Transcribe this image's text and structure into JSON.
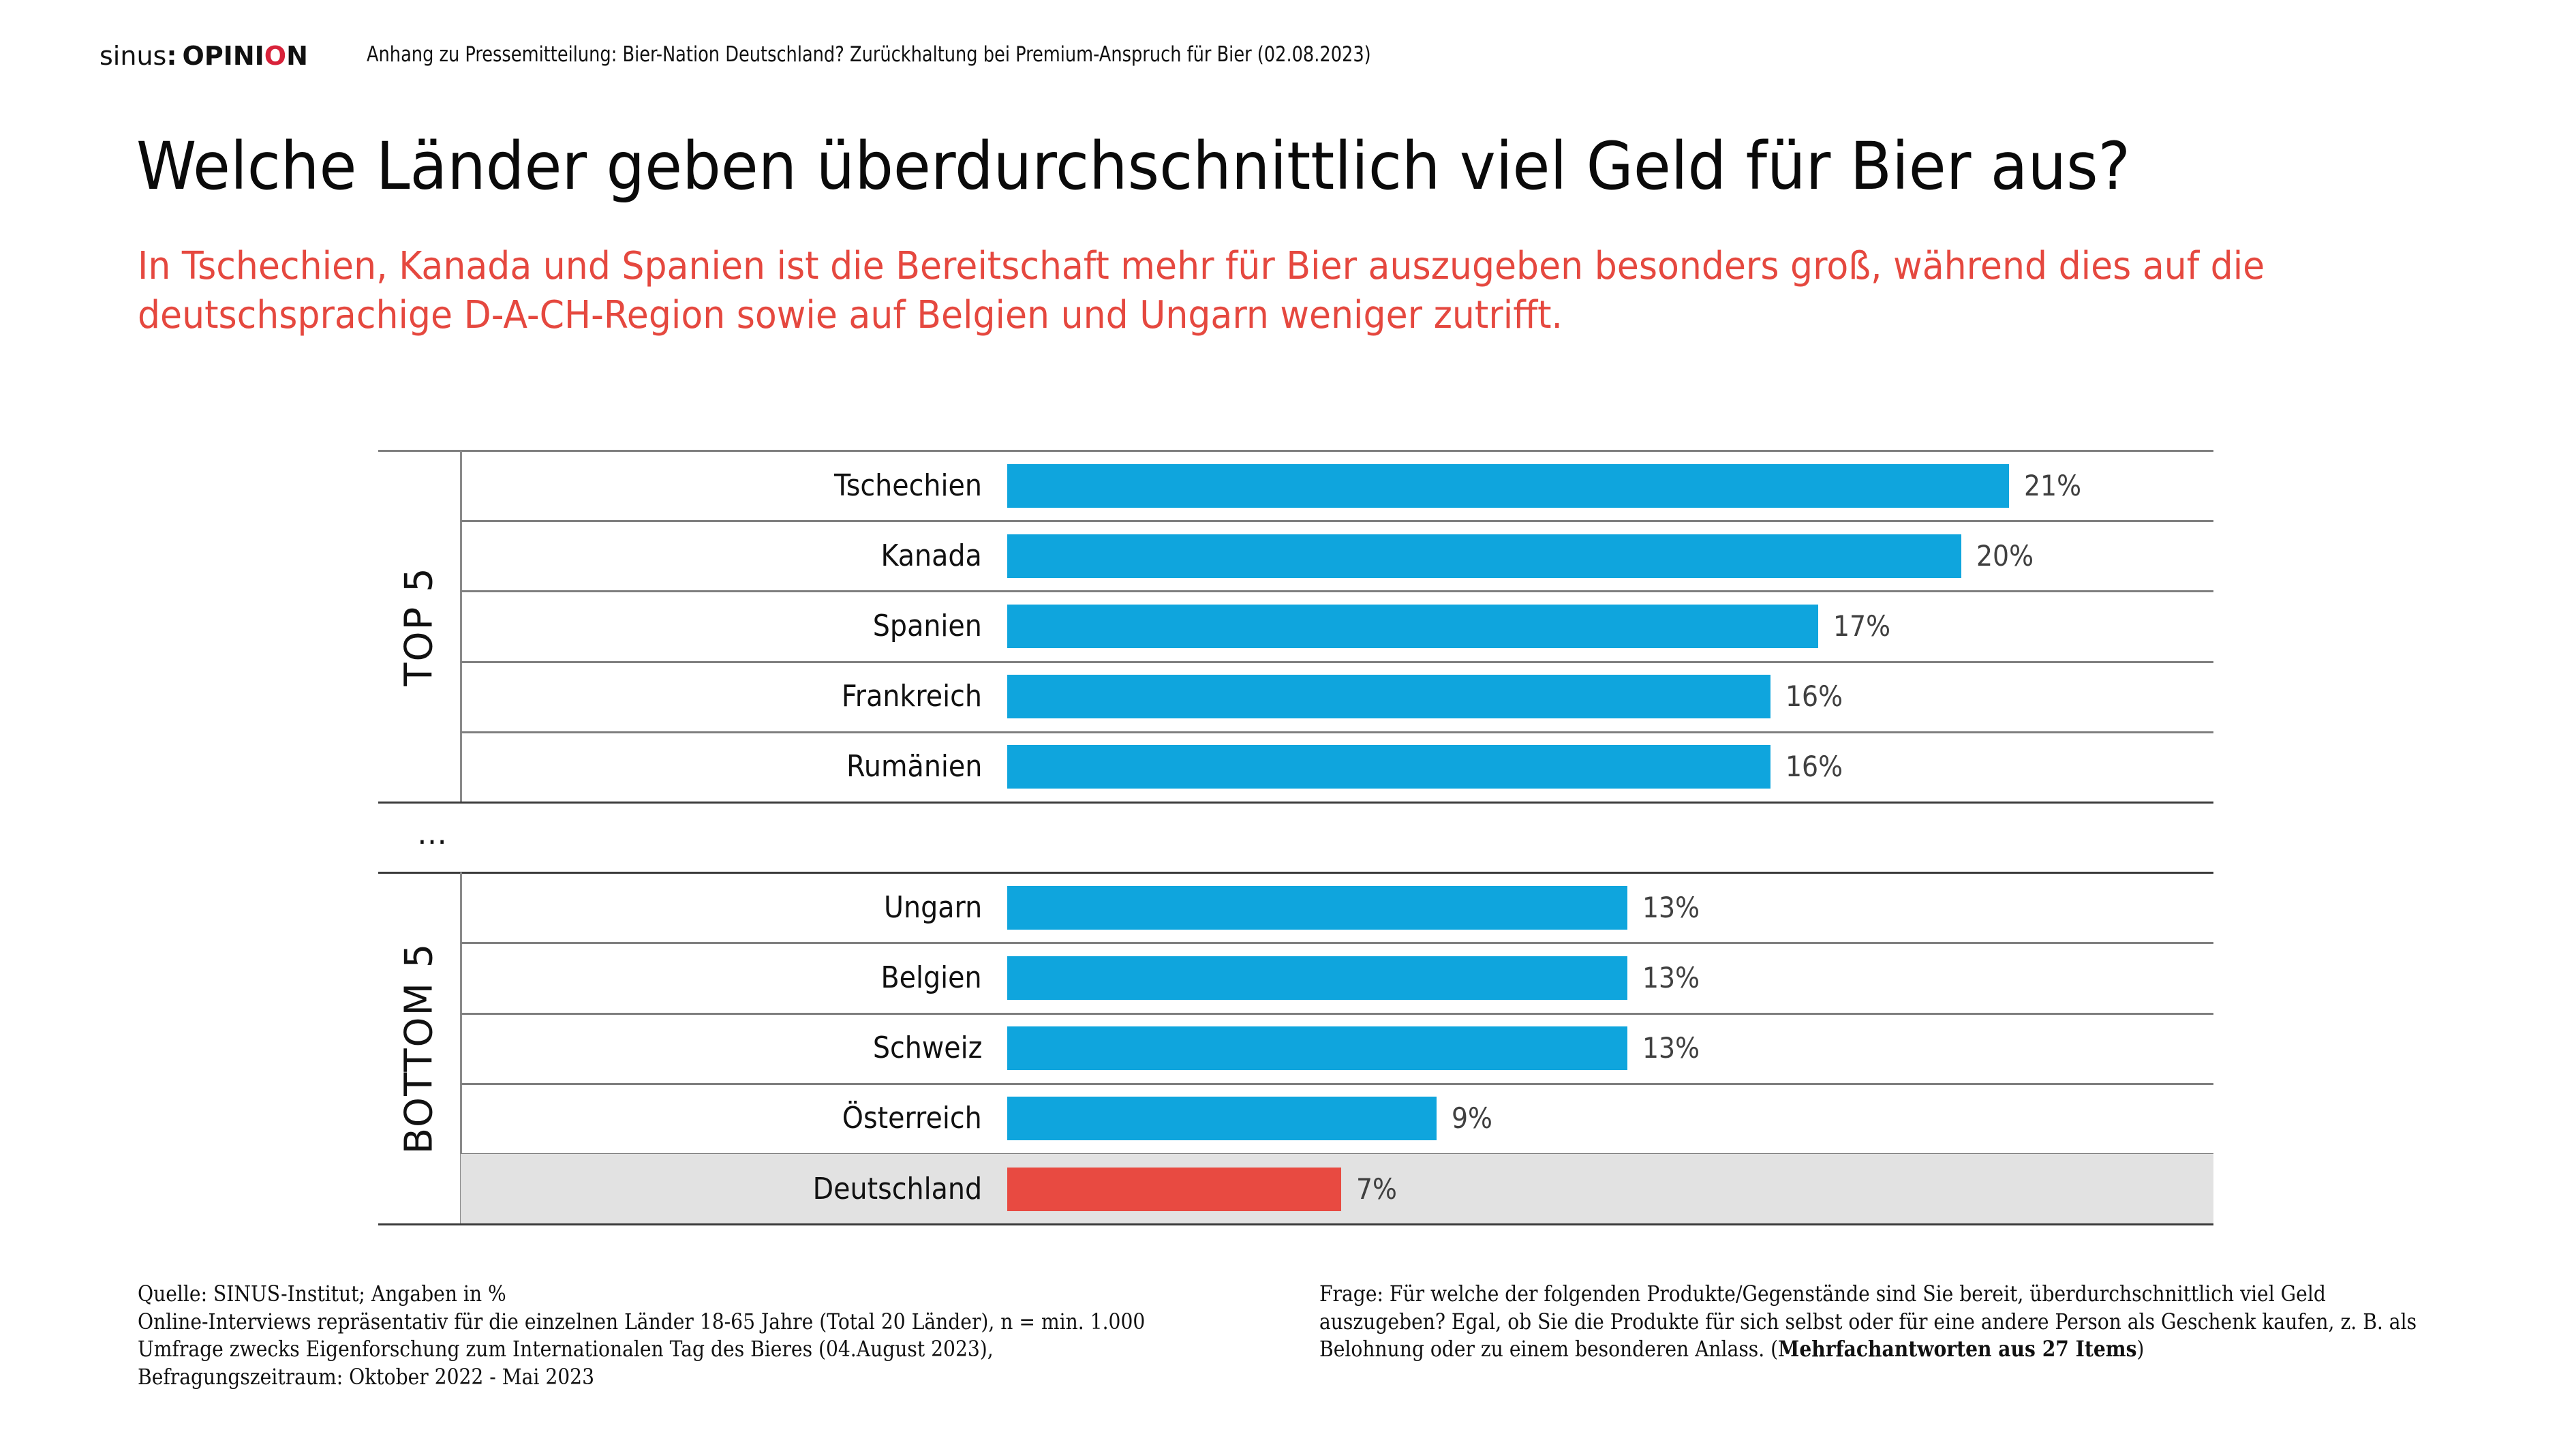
{
  "header": {
    "logo": {
      "part1": "sinus",
      "separator": ":",
      "brand_prefix": "OPINI",
      "brand_accent": "O",
      "brand_suffix": "N"
    },
    "text": "Anhang zu Pressemitteilung: Bier-Nation Deutschland? Zurückhaltung bei Premium-Anspruch für Bier (02.08.2023)"
  },
  "title": "Welche Länder geben überdurchschnittlich viel Geld für Bier aus?",
  "subtitle": [
    "In Tschechien, Kanada und Spanien ist die Bereitschaft mehr für Bier auszugeben besonders groß, während dies auf die",
    "deutschsprachige D-A-CH-Region sowie auf Belgien und Ungarn weniger zutrifft."
  ],
  "colors": {
    "bar": "#0fa5dd",
    "highlight_bar": "#e84a41",
    "highlight_row": "#e2e2e2",
    "subtitle": "#e5483f",
    "logo_accent": "#d8223a"
  },
  "chart_data": {
    "type": "bar",
    "orientation": "horizontal",
    "title": "Welche Länder geben überdurchschnittlich viel Geld für Bier aus?",
    "xlabel": "",
    "ylabel": "",
    "unit": "%",
    "xlim": [
      0,
      21
    ],
    "grid": false,
    "legend": "none",
    "gap_label": "…",
    "groups": [
      {
        "name": "TOP 5",
        "categories": [
          "Tschechien",
          "Kanada",
          "Spanien",
          "Frankreich",
          "Rumänien"
        ],
        "values": [
          21,
          20,
          17,
          16,
          16
        ],
        "labels": [
          "21%",
          "20%",
          "17%",
          "16%",
          "16%"
        ],
        "highlight": [
          false,
          false,
          false,
          false,
          false
        ]
      },
      {
        "name": "BOTTOM 5",
        "categories": [
          "Ungarn",
          "Belgien",
          "Schweiz",
          "Österreich",
          "Deutschland"
        ],
        "values": [
          13,
          13,
          13,
          9,
          7
        ],
        "labels": [
          "13%",
          "13%",
          "13%",
          "9%",
          "7%"
        ],
        "highlight": [
          false,
          false,
          false,
          false,
          true
        ]
      }
    ]
  },
  "footer": {
    "left": [
      "Quelle: SINUS-Institut; Angaben in %",
      "Online-Interviews repräsentativ für die einzelnen Länder 18-65 Jahre (Total 20 Länder), n = min. 1.000",
      "Umfrage zwecks Eigenforschung zum Internationalen Tag des Bieres (04.August 2023),",
      "Befragungszeitraum: Oktober 2022 - Mai 2023"
    ],
    "right": [
      "Frage: Für welche der folgenden Produkte/Gegenstände sind Sie bereit, überdurchschnittlich viel Geld",
      "auszugeben? Egal, ob Sie die Produkte für sich selbst oder für eine andere Person als Geschenk kaufen, z. B. als"
    ],
    "right_last_plain": "Belohnung oder zu einem besonderen Anlass. (",
    "right_last_bold": "Mehrfachantworten aus 27 Items",
    "right_last_close": ")"
  }
}
